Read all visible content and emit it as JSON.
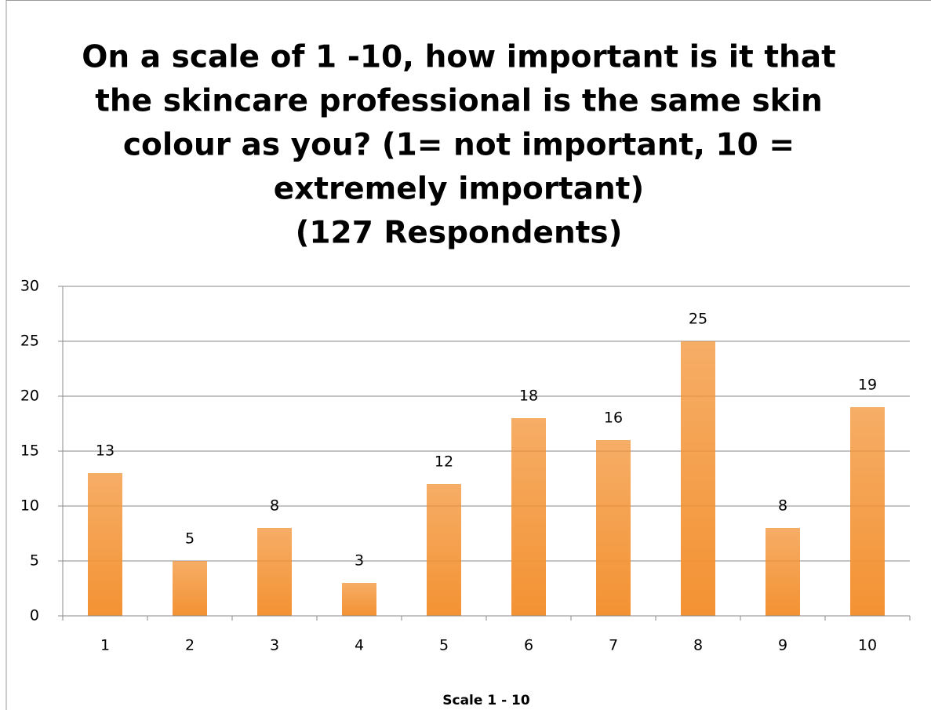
{
  "chart_data": {
    "type": "bar",
    "title": [
      "On a scale of 1 -10, how important is it that",
      "the skincare professional is the same skin",
      "colour as you? (1= not important, 10 =",
      "extremely important)",
      "(127 Respondents)"
    ],
    "x_label": "Scale 1 - 10",
    "categories": [
      "1",
      "2",
      "3",
      "4",
      "5",
      "6",
      "7",
      "8",
      "9",
      "10"
    ],
    "values": [
      13,
      5,
      8,
      3,
      12,
      18,
      16,
      25,
      8,
      19
    ],
    "color": "#f39233",
    "ylim": [
      0,
      30
    ],
    "yticks": [
      0,
      5,
      10,
      15,
      20,
      25,
      30
    ],
    "grid": true
  }
}
